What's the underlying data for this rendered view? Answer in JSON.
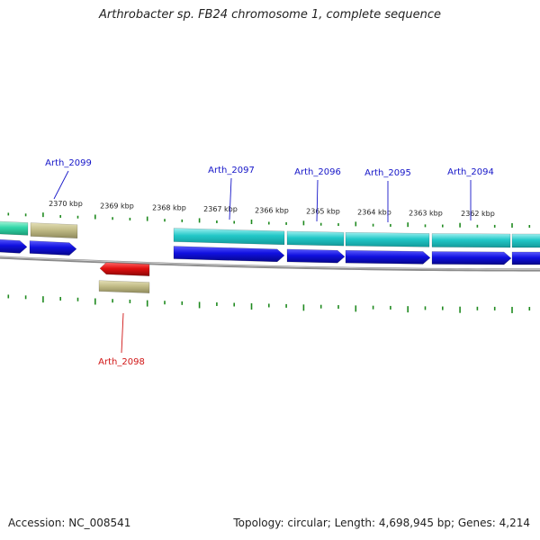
{
  "title": "Arthrobacter sp. FB24 chromosome 1, complete sequence",
  "accession": "Accession: NC_008541",
  "summary": "Topology: circular; Length: 4,698,945 bp; Genes: 4,214",
  "colors": {
    "forward_gene": "#1010e0",
    "reverse_gene": "#e01010",
    "cds_cyan": "#22c8c8",
    "cds_teal": "#33d7a9",
    "cds_khaki": "#c2bc87",
    "backbone": "#8a8a8a",
    "tick": "#1f8a1f",
    "forward_label": "#1515c8",
    "reverse_label": "#d01515"
  },
  "scale_labels": [
    "2370 kbp",
    "2369 kbp",
    "2368 kbp",
    "2367 kbp",
    "2366 kbp",
    "2365 kbp",
    "2364 kbp",
    "2363 kbp",
    "2362 kbp"
  ],
  "genes": [
    {
      "label": "Arth_2099",
      "strand": "forward"
    },
    {
      "label": "Arth_2097",
      "strand": "forward"
    },
    {
      "label": "Arth_2096",
      "strand": "forward"
    },
    {
      "label": "Arth_2095",
      "strand": "forward"
    },
    {
      "label": "Arth_2094",
      "strand": "forward"
    },
    {
      "label": "Arth_2098",
      "strand": "reverse"
    }
  ]
}
